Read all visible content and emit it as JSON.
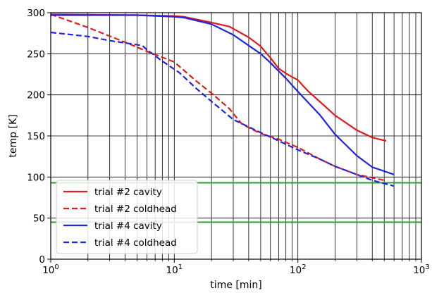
{
  "chart_data": {
    "type": "line",
    "xlabel": "time [min]",
    "ylabel": "temp [K]",
    "xscale": "log",
    "xlim": [
      1,
      1000
    ],
    "ylim": [
      0,
      300
    ],
    "grid": "on (major and minor x, major y)",
    "legend_position": "lower-left",
    "x_tick_labels": [
      "10^0",
      "10^1",
      "10^2",
      "10^3"
    ],
    "y_tick_labels": [
      "0",
      "50",
      "100",
      "150",
      "200",
      "250",
      "300"
    ],
    "series": [
      {
        "name": "trial #2 cavity",
        "color": "#e41a1c",
        "style": "solid",
        "x": [
          1,
          5,
          10,
          12,
          20,
          28,
          40,
          50,
          60,
          70,
          80,
          100,
          120,
          150,
          200,
          300,
          400,
          520
        ],
        "y": [
          298,
          297,
          296,
          295,
          288,
          283,
          270,
          259,
          245,
          232,
          226,
          218,
          205,
          192,
          175,
          157,
          148,
          144
        ]
      },
      {
        "name": "trial #2 coldhead",
        "color": "#e41a1c",
        "style": "dashed",
        "x": [
          1,
          2,
          4,
          6,
          10,
          15,
          20,
          28,
          35,
          40,
          50,
          70,
          100,
          150,
          200,
          300,
          500
        ],
        "y": [
          298,
          282,
          264,
          253,
          240,
          217,
          202,
          183,
          165,
          160,
          153,
          146,
          136,
          122,
          113,
          103,
          96
        ]
      },
      {
        "name": "trial #4 cavity",
        "color": "#1f24e0",
        "style": "solid",
        "x": [
          1,
          5,
          10,
          12,
          20,
          30,
          40,
          50,
          60,
          80,
          100,
          150,
          200,
          300,
          400,
          600
        ],
        "y": [
          297,
          297,
          295,
          294,
          286,
          273,
          260,
          250,
          239,
          220,
          204,
          176,
          152,
          126,
          112,
          103
        ]
      },
      {
        "name": "trial #4 coldhead",
        "color": "#1f24e0",
        "style": "dashed",
        "x": [
          1,
          2,
          3,
          4.5,
          5.5,
          6,
          8,
          11,
          15,
          20,
          30,
          40,
          50,
          70,
          100,
          150,
          200,
          300,
          400,
          600
        ],
        "y": [
          276,
          271,
          266,
          262,
          260,
          255,
          241,
          227,
          208,
          192,
          170,
          161,
          154,
          144,
          133,
          122,
          113,
          103,
          96,
          89
        ]
      }
    ],
    "reference_lines": [
      {
        "y": 93,
        "color": "#2ca02c"
      },
      {
        "y": 45,
        "color": "#2ca02c"
      }
    ]
  }
}
